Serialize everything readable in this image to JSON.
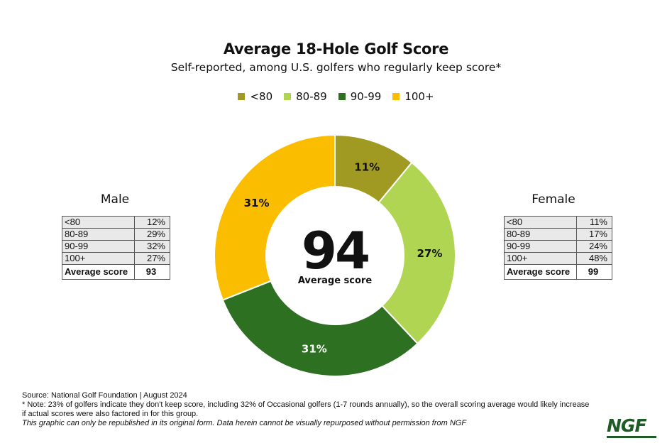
{
  "chart_data": {
    "type": "pie",
    "title": "Average 18-Hole Golf Score",
    "subtitle": "Self-reported, among U.S. golfers who regularly keep score*",
    "legend": [
      {
        "label": "<80",
        "color": "#a09a22"
      },
      {
        "label": "80-89",
        "color": "#b0d552"
      },
      {
        "label": "90-99",
        "color": "#2e7022"
      },
      {
        "label": "100+",
        "color": "#fbbd00"
      }
    ],
    "slices": [
      {
        "label": "<80",
        "value": 11,
        "text": "11%",
        "color": "#a09a22"
      },
      {
        "label": "80-89",
        "value": 27,
        "text": "27%",
        "color": "#b0d552"
      },
      {
        "label": "90-99",
        "value": 31,
        "text": "31%",
        "color": "#2e7022"
      },
      {
        "label": "100+",
        "value": 31,
        "text": "31%",
        "color": "#fbbd00"
      }
    ],
    "center_value": "94",
    "center_label": "Average score"
  },
  "male": {
    "title": "Male",
    "rows": [
      {
        "label": "<80",
        "value": "12%"
      },
      {
        "label": "80-89",
        "value": "29%"
      },
      {
        "label": "90-99",
        "value": "32%"
      },
      {
        "label": "100+",
        "value": "27%"
      }
    ],
    "avg_label": "Average score",
    "avg_value": "93"
  },
  "female": {
    "title": "Female",
    "rows": [
      {
        "label": "<80",
        "value": "11%"
      },
      {
        "label": "80-89",
        "value": "17%"
      },
      {
        "label": "90-99",
        "value": "24%"
      },
      {
        "label": "100+",
        "value": "48%"
      }
    ],
    "avg_label": "Average score",
    "avg_value": "99"
  },
  "notes": {
    "source": "Source: National Golf Foundation | August 2024",
    "note": "* Note: 23% of golfers indicate they don't keep score, including 32% of Occasional golfers (1-7 rounds annually), so the overall scoring average would likely increase if actual scores were also factored in for this group.",
    "rights": "This graphic can only be republished in its original form. Data herein cannot be visually repurposed without permission from NGF"
  },
  "logo": "NGF"
}
